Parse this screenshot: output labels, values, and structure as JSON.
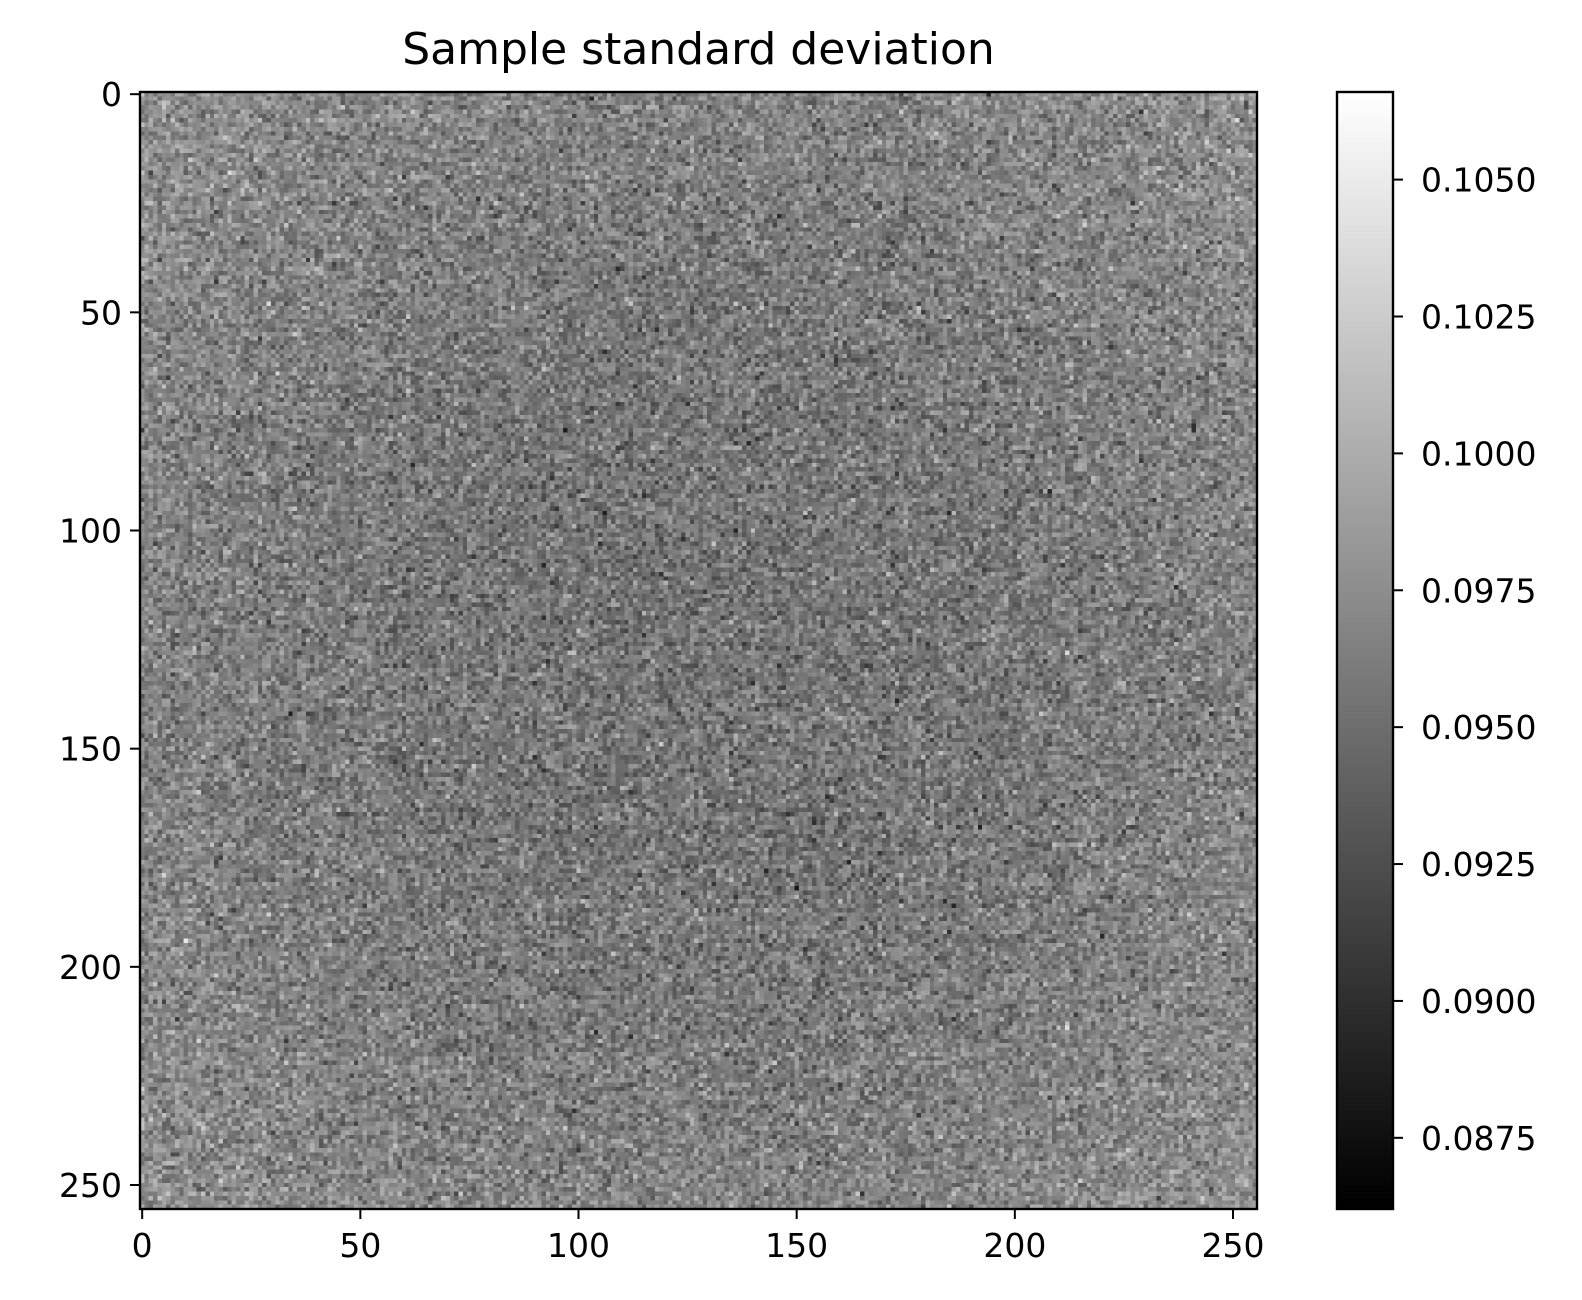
{
  "chart_data": {
    "type": "heatmap",
    "title": "Sample standard deviation",
    "xlabel": "",
    "ylabel": "",
    "grid_size": [
      256,
      256
    ],
    "xlim": [
      0,
      255
    ],
    "ylim": [
      255,
      0
    ],
    "x_ticks": [
      0,
      50,
      100,
      150,
      200,
      250
    ],
    "y_ticks": [
      0,
      50,
      100,
      150,
      200,
      250
    ],
    "x_tick_labels": [
      "0",
      "50",
      "100",
      "150",
      "200",
      "250"
    ],
    "y_tick_labels": [
      "0",
      "50",
      "100",
      "150",
      "200",
      "250"
    ],
    "colormap": "gray",
    "color_range": [
      0.0862,
      0.1066
    ],
    "colorbar": {
      "ticks": [
        0.0875,
        0.09,
        0.0925,
        0.095,
        0.0975,
        0.1,
        0.1025,
        0.105
      ],
      "tick_labels": [
        "0.0875",
        "0.0900",
        "0.0925",
        "0.0950",
        "0.0975",
        "0.1000",
        "0.1025",
        "0.1050"
      ]
    },
    "value_summary": {
      "mean_center": 0.0955,
      "mean_edges": 0.0975,
      "noise_std": 0.0018
    },
    "grid": false
  }
}
